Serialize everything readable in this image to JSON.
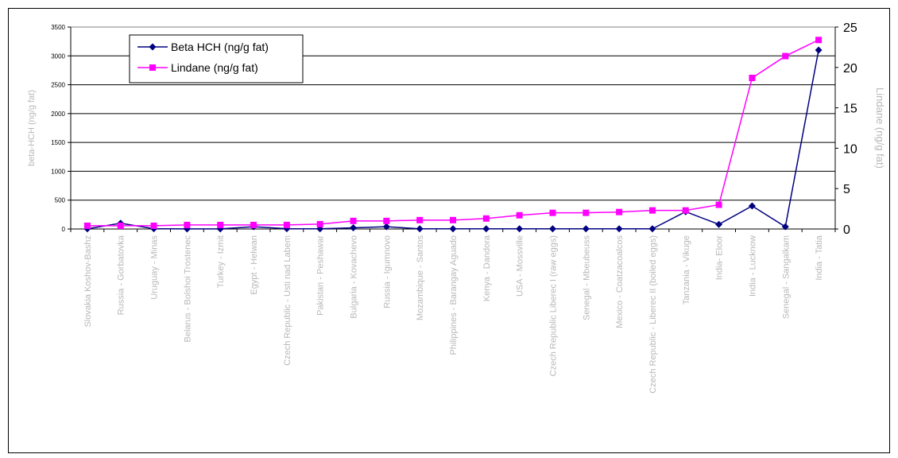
{
  "chart_data": {
    "type": "line",
    "categories": [
      "Slovakia Koshov-Bashz",
      "Russia - Gorbatovka",
      "Uruguay - Minas",
      "Belarus - Bolshoi Trostenec",
      "Turkey - Izmit",
      "Egypt - Helwan",
      "Czech Republic - Usti nad Labem",
      "Pakistan - Peshawar",
      "Bulgaria - Kovachevo",
      "Russia - Igumnovo",
      "Mozambique - Santos",
      "Philippines - Barangay Aguado",
      "Kenya - Dandora",
      "USA - Mossville",
      "Czech Republic Liberec I (raw eggs)",
      "Senegal - Mbeubeuss",
      "Mexico - Coatzacoalcos",
      "Czech Republic - Liberec II (boiled eggs)",
      "Tanzania - Vikuge",
      "India- Eloor",
      "India - Lucknow",
      "Senegal - Sangalkam",
      "India - Tatia"
    ],
    "series": [
      {
        "name": "Beta HCH (ng/g fat)",
        "axis": "left",
        "color": "#000080",
        "marker": "diamond",
        "values": [
          3,
          100,
          5,
          2,
          2,
          40,
          5,
          3,
          20,
          40,
          3,
          3,
          3,
          3,
          3,
          3,
          3,
          3,
          300,
          80,
          400,
          40,
          3100
        ]
      },
      {
        "name": "Lindane (ng/g fat)",
        "axis": "right",
        "color": "#ff00ff",
        "marker": "square",
        "values": [
          0.4,
          0.4,
          0.4,
          0.5,
          0.5,
          0.5,
          0.5,
          0.6,
          1.0,
          1.0,
          1.1,
          1.1,
          1.3,
          1.7,
          2.0,
          2.0,
          2.1,
          2.3,
          2.3,
          3.0,
          18.7,
          21.4,
          23.4
        ]
      }
    ],
    "ylabel": "beta-HCH (ng/g fat)",
    "ylabel_right": "Lindane (ng/g fat)",
    "ylim": [
      0,
      3500
    ],
    "ylim_right": [
      0,
      25
    ],
    "yticks": [
      0,
      500,
      1000,
      1500,
      2000,
      2500,
      3000,
      3500
    ],
    "yticks_right": [
      0,
      5,
      10,
      15,
      20,
      25
    ],
    "grid": true,
    "legend": "top-left"
  }
}
